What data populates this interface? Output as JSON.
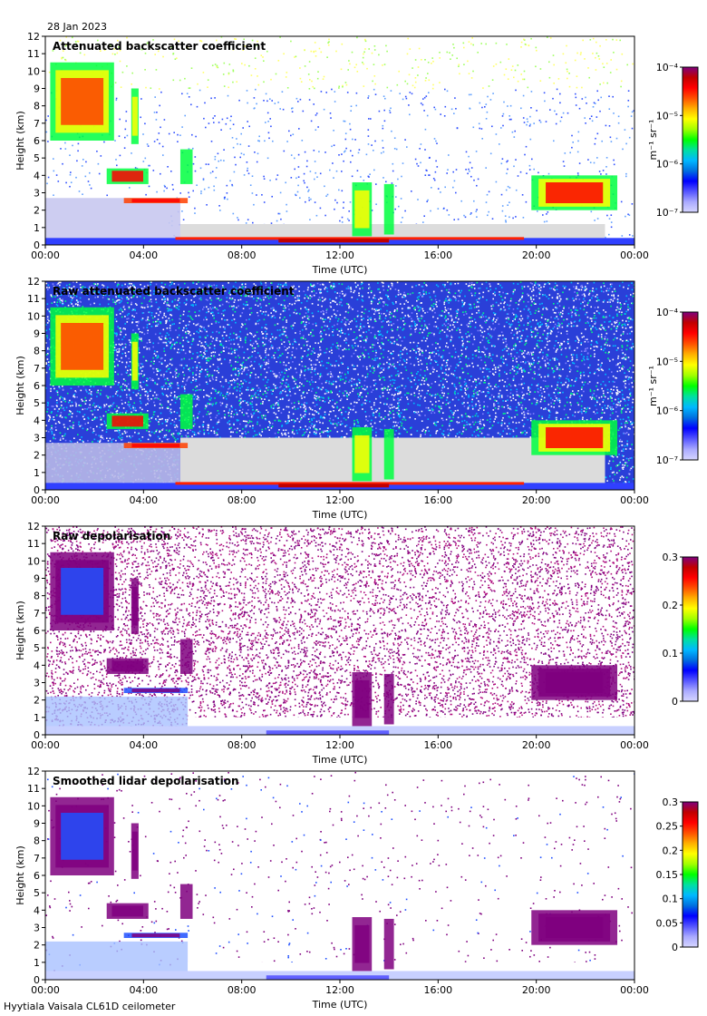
{
  "date_label": "28 Jan 2023",
  "footer": "Hyytiala Vaisala CL61D ceilometer",
  "colors": {
    "ramp": [
      "#d6d6ff",
      "#aaaaff",
      "#5555ff",
      "#0000ff",
      "#0070e0",
      "#00b8ff",
      "#00e0a0",
      "#00ff00",
      "#a0ff00",
      "#ffff00",
      "#ffb000",
      "#ff5000",
      "#ff0000",
      "#c00000",
      "#7f007f"
    ],
    "plot_bg": "#ffffff",
    "gray_bg": "#dcdcdc",
    "frame": "#000000"
  },
  "chart_data": [
    {
      "type": "heatmap",
      "title": "Attenuated backscatter coefficient",
      "xlabel": "Time (UTC)",
      "ylabel": "Height (km)",
      "xticks": [
        "00:00",
        "04:00",
        "08:00",
        "12:00",
        "16:00",
        "20:00",
        "00:00"
      ],
      "yticks": [
        "0",
        "1",
        "2",
        "3",
        "4",
        "5",
        "6",
        "7",
        "8",
        "9",
        "10",
        "11",
        "12"
      ],
      "xlim": [
        0,
        24
      ],
      "ylim": [
        0,
        12
      ],
      "colorbar": {
        "label": "m⁻¹ sr⁻¹",
        "scale": "log",
        "ticks": [
          "10⁻⁷",
          "10⁻⁶",
          "10⁻⁵",
          "10⁻⁴"
        ],
        "range": [
          1e-07,
          0.0001
        ]
      },
      "features": {
        "cirrus": "00:10–03:00 UTC, ~6–10.5 km, high values (yellow–red)",
        "mid_level_clouds": "02:30–06:00 UTC, ~2.5–4.5 km",
        "boundary_layer": "05:00–23:00 UTC, ~0–0.5 km, red",
        "convective_cells": "12:30–14:00 UTC, up to ~3.5 km",
        "evening_cloud": "19:40–23:30 UTC, ~2–4 km, red core"
      }
    },
    {
      "type": "heatmap",
      "title": "Raw attenuated backscatter coefficient",
      "xlabel": "Time (UTC)",
      "ylabel": "Height (km)",
      "xticks": [
        "00:00",
        "04:00",
        "08:00",
        "12:00",
        "16:00",
        "20:00",
        "00:00"
      ],
      "yticks": [
        "0",
        "1",
        "2",
        "3",
        "4",
        "5",
        "6",
        "7",
        "8",
        "9",
        "10",
        "11",
        "12"
      ],
      "xlim": [
        0,
        24
      ],
      "ylim": [
        0,
        12
      ],
      "colorbar": {
        "label": "m⁻¹ sr⁻¹",
        "scale": "log",
        "ticks": [
          "10⁻⁷",
          "10⁻⁶",
          "10⁻⁵",
          "10⁻⁴"
        ],
        "range": [
          1e-07,
          0.0001
        ]
      }
    },
    {
      "type": "heatmap",
      "title": "Raw depolarisation",
      "xlabel": "Time (UTC)",
      "ylabel": "Height (km)",
      "xticks": [
        "00:00",
        "04:00",
        "08:00",
        "12:00",
        "16:00",
        "20:00",
        "00:00"
      ],
      "yticks": [
        "0",
        "1",
        "2",
        "3",
        "4",
        "5",
        "6",
        "7",
        "8",
        "9",
        "10",
        "11",
        "12"
      ],
      "xlim": [
        0,
        24
      ],
      "ylim": [
        0,
        12
      ],
      "colorbar": {
        "label": "",
        "scale": "linear",
        "ticks": [
          "0",
          "0.1",
          "0.2",
          "0.3"
        ],
        "range": [
          0,
          0.3
        ]
      }
    },
    {
      "type": "heatmap",
      "title": "Smoothed lidar depolarisation",
      "xlabel": "Time (UTC)",
      "ylabel": "Height (km)",
      "xticks": [
        "00:00",
        "04:00",
        "08:00",
        "12:00",
        "16:00",
        "20:00",
        "00:00"
      ],
      "yticks": [
        "0",
        "1",
        "2",
        "3",
        "4",
        "5",
        "6",
        "7",
        "8",
        "9",
        "10",
        "11",
        "12"
      ],
      "xlim": [
        0,
        24
      ],
      "ylim": [
        0,
        12
      ],
      "colorbar": {
        "label": "",
        "scale": "linear",
        "ticks": [
          "0",
          "0.05",
          "0.1",
          "0.15",
          "0.2",
          "0.25",
          "0.3"
        ],
        "range": [
          0,
          0.3
        ]
      }
    }
  ]
}
